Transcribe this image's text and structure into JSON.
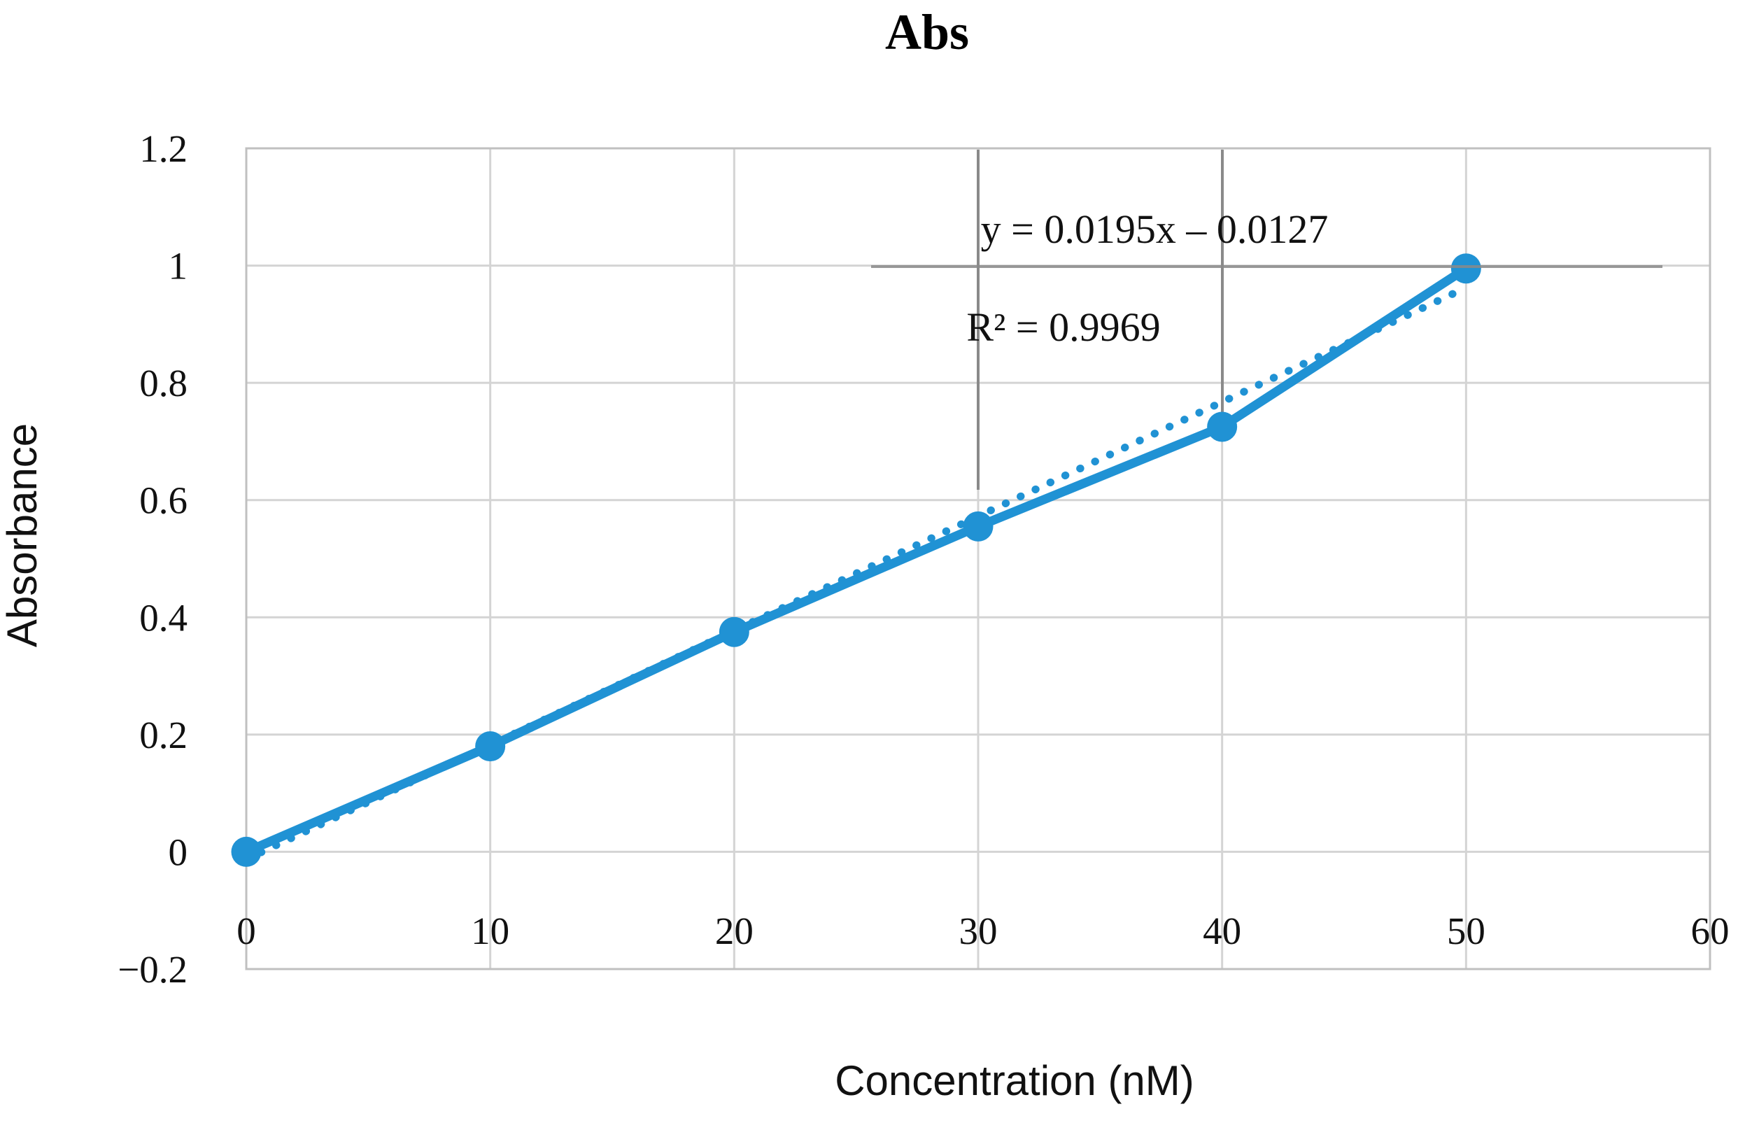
{
  "figure": {
    "title": "Abs",
    "x_axis_label": "Concentration (nM)",
    "y_axis_label": "Absorbance"
  },
  "trendline": {
    "equation_label": "y = 0.0195x – 0.0127",
    "r_squared_label": "R² = 0.9969",
    "slope": 0.0195,
    "intercept": -0.0127,
    "r_squared": 0.9969,
    "x_start": 0,
    "x_end": 50,
    "style": "dotted"
  },
  "chart_data": {
    "type": "line",
    "title": "Abs",
    "xlabel": "Concentration (nM)",
    "ylabel": "Absorbance",
    "x": [
      0,
      10,
      20,
      30,
      40,
      50
    ],
    "series": [
      {
        "name": "Abs",
        "values": [
          0.0,
          0.18,
          0.375,
          0.555,
          0.725,
          0.995
        ]
      }
    ],
    "x_ticks": [
      0,
      10,
      20,
      30,
      40,
      50,
      60
    ],
    "x_tick_labels": [
      "0",
      "10",
      "20",
      "30",
      "40",
      "50",
      "60"
    ],
    "y_ticks": [
      -0.2,
      0,
      0.2,
      0.4,
      0.6,
      0.8,
      1,
      1.2
    ],
    "y_tick_labels": [
      "−0.2",
      "0",
      "0.2",
      "0.4",
      "0.6",
      "0.8",
      "1",
      "1.2"
    ],
    "xlim": [
      0,
      60
    ],
    "ylim": [
      -0.2,
      1.2
    ],
    "grid": true,
    "legend": "none",
    "marker": "circle",
    "line_style": "solid-with-markers"
  },
  "colors": {
    "series_blue": "#2092D4",
    "gridline": "#D4D4D4",
    "plot_border": "#C0C0C0",
    "dark_line": "#8A8A8A",
    "text": "#111111",
    "background": "#FFFFFF"
  }
}
